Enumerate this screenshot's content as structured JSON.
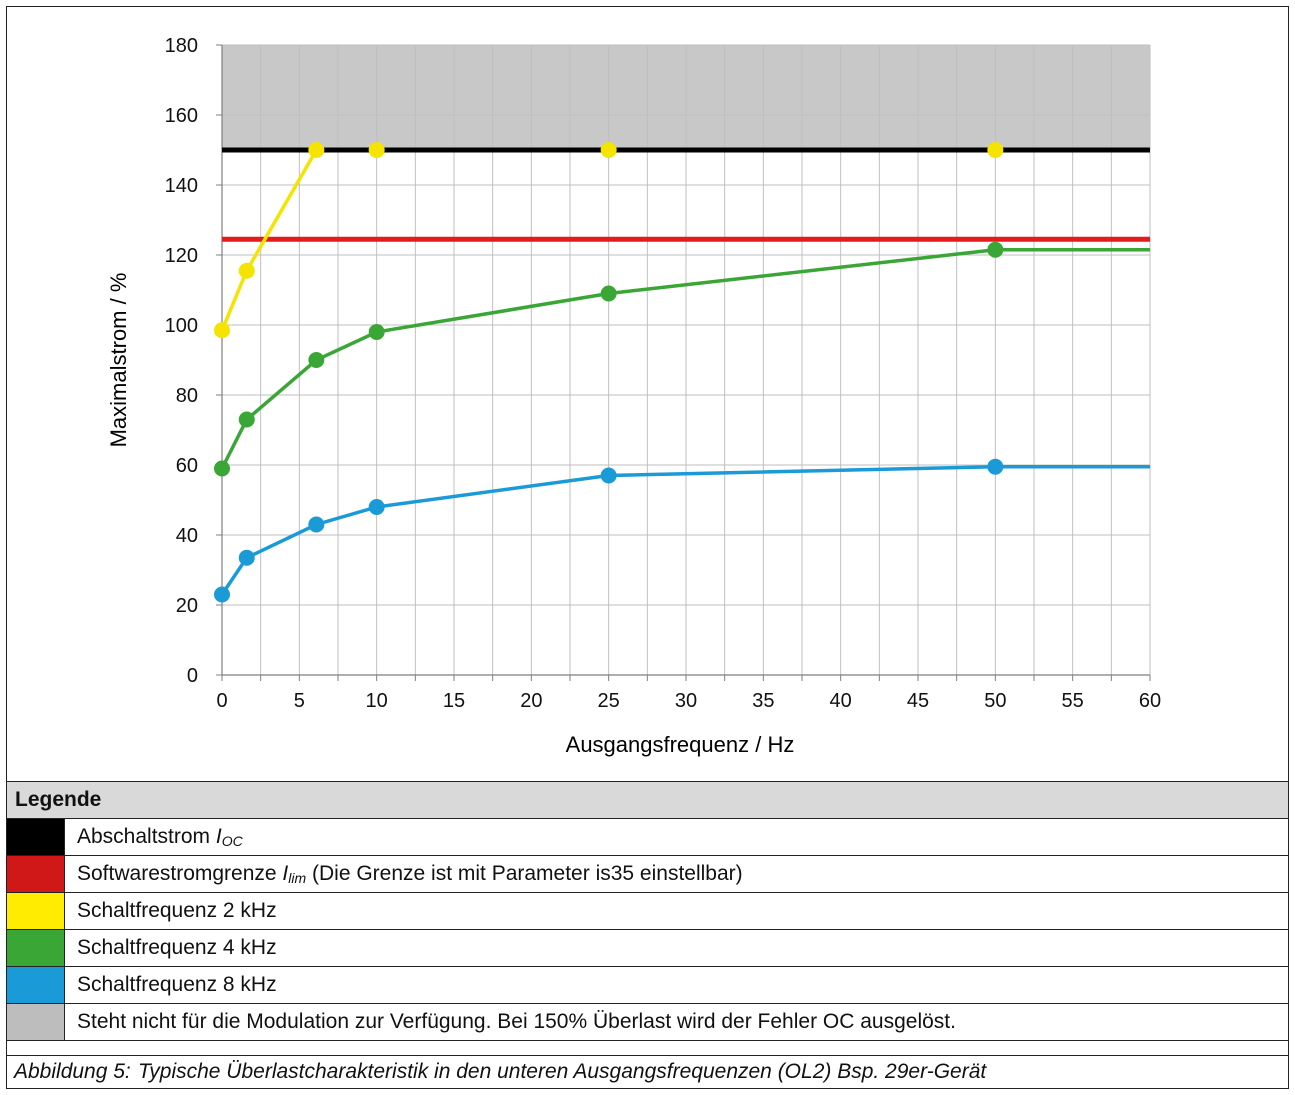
{
  "chart_data": {
    "type": "line",
    "xlabel": "Ausgangsfrequenz / Hz",
    "ylabel": "Maximalstrom / %",
    "xlim": [
      0,
      60
    ],
    "ylim": [
      0,
      180
    ],
    "x_ticks": [
      0,
      5,
      10,
      15,
      20,
      25,
      30,
      35,
      40,
      45,
      50,
      55,
      60
    ],
    "y_ticks": [
      0,
      20,
      40,
      60,
      80,
      100,
      120,
      140,
      160,
      180
    ],
    "grid": true,
    "shaded_region": {
      "y_from": 150,
      "y_to": 180,
      "color": "#c8c8c8"
    },
    "hlines": [
      {
        "y": 150,
        "color": "#000000"
      },
      {
        "y": 124.5,
        "color": "#e31b1b"
      }
    ],
    "series": [
      {
        "color": "#f5e300",
        "x": [
          0,
          1.6,
          6.1
        ],
        "y": [
          98.5,
          115.5,
          150
        ],
        "extra_markers": [
          [
            10,
            150
          ],
          [
            25,
            150
          ],
          [
            50,
            150
          ]
        ]
      },
      {
        "color": "#3aa635",
        "x": [
          0,
          1.6,
          6.1,
          10,
          25,
          50
        ],
        "y": [
          59,
          73,
          90,
          98,
          109,
          121.5
        ],
        "extend_to": 60
      },
      {
        "color": "#1a9ad6",
        "x": [
          0,
          1.6,
          6.1,
          10,
          25,
          50
        ],
        "y": [
          23,
          33.5,
          43,
          48,
          57,
          59.5
        ],
        "extend_to": 60
      }
    ]
  },
  "legend": {
    "heading": "Legende",
    "rows": [
      {
        "color": "#000000",
        "text": "Abschaltstrom ",
        "sym": "I",
        "sub": "OC",
        "rest": ""
      },
      {
        "color": "#d01818",
        "text": "Softwarestromgrenze ",
        "sym": "I",
        "sub": "lim",
        "rest": " (Die Grenze ist mit Parameter is35 einstellbar)"
      },
      {
        "color": "#ffec00",
        "text": "Schaltfrequenz 2 kHz",
        "sym": "",
        "sub": "",
        "rest": ""
      },
      {
        "color": "#3aa635",
        "text": "Schaltfrequenz 4 kHz",
        "sym": "",
        "sub": "",
        "rest": ""
      },
      {
        "color": "#1a9ad6",
        "text": "Schaltfrequenz 8 kHz",
        "sym": "",
        "sub": "",
        "rest": ""
      },
      {
        "color": "#bdbdbd",
        "text": "Steht nicht für die Modulation zur Verfügung. Bei 150% Überlast wird der Fehler OC ausgelöst.",
        "sym": "",
        "sub": "",
        "rest": ""
      }
    ]
  },
  "caption": {
    "label": "Abbildung 5:",
    "text": "Typische Überlastcharakteristik in den unteren Ausgangsfrequenzen (OL2) Bsp. 29er-Gerät"
  }
}
